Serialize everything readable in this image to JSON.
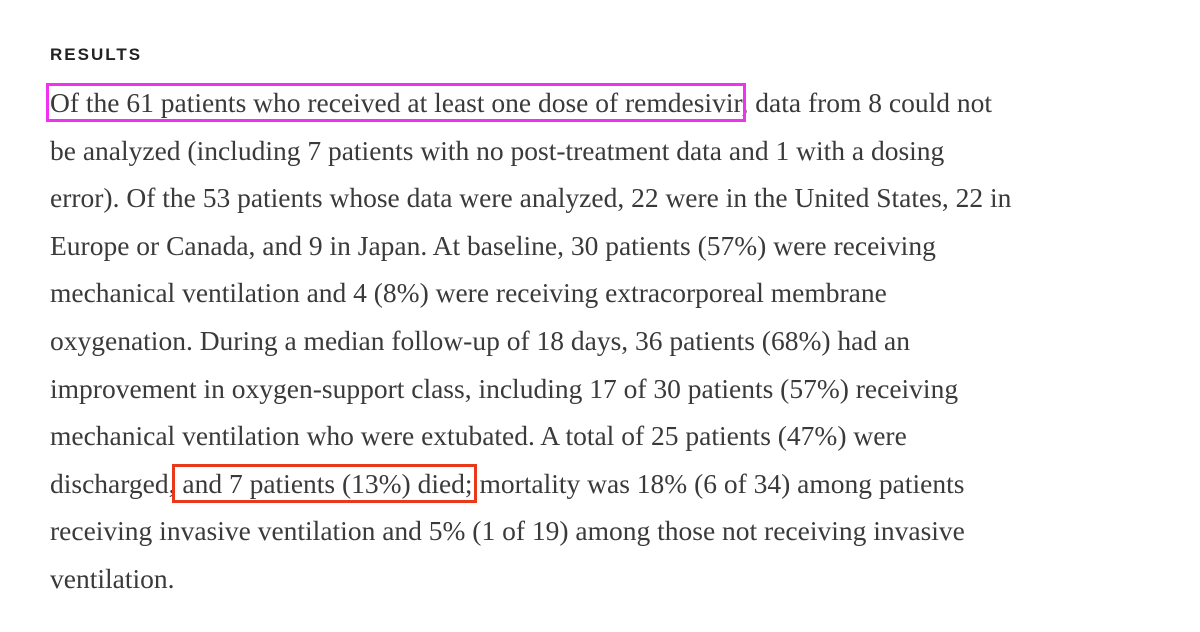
{
  "section": {
    "heading": "RESULTS",
    "lines": [
      [
        "Of the 61 patients who received at least one dose of remdesivir",
        ", data from 8 could not"
      ],
      [
        "be analyzed (including 7 patients with no post-treatment data and 1 with a dosing"
      ],
      [
        "error). Of the 53 patients whose data were analyzed, 22 were in the United States, 22 in"
      ],
      [
        "Europe or Canada, and 9 in Japan. At baseline, 30 patients (57%) were receiving"
      ],
      [
        "mechanical ventilation and 4 (8%) were receiving extracorporeal membrane"
      ],
      [
        "oxygenation. During a median follow-up of 18 days, 36 patients (68%) had an"
      ],
      [
        "improvement in oxygen-support class, including 17 of 30 patients (57%) receiving"
      ],
      [
        "mechanical ventilation who were extubated. A total of 25 patients (47%) were"
      ],
      [
        "discharged,",
        " and 7 patients (13%) died;",
        " mortality was 18% (6 of 34) among patients"
      ],
      [
        "receiving invasive ventilation and 5% (1 of 19) among those not receiving invasive"
      ],
      [
        "ventilation."
      ]
    ]
  }
}
